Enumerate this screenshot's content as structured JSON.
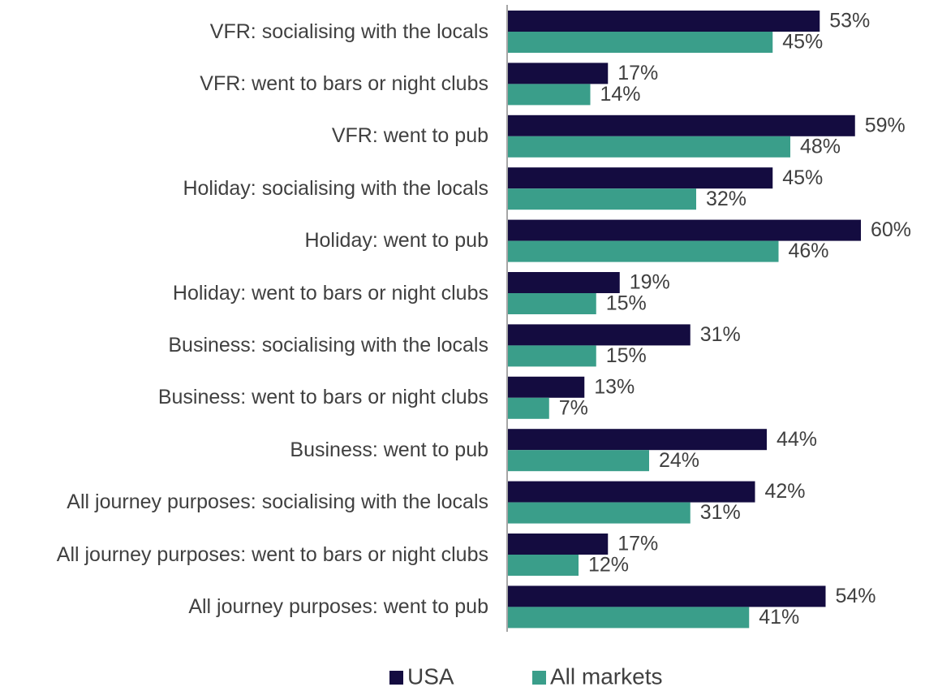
{
  "chart_data": {
    "type": "bar",
    "orientation": "horizontal",
    "categories": [
      "VFR: socialising with the locals",
      "VFR: went to bars or night clubs",
      "VFR: went to pub",
      "Holiday: socialising with the locals",
      "Holiday: went to pub",
      "Holiday: went to bars or night clubs",
      "Business: socialising with the locals",
      "Business: went to bars or night clubs",
      "Business: went to pub",
      "All journey purposes: socialising with the locals",
      "All journey purposes: went to bars or night clubs",
      "All journey purposes: went to pub"
    ],
    "series": [
      {
        "name": "USA",
        "color": "#140c40",
        "values": [
          53,
          17,
          59,
          45,
          60,
          19,
          31,
          13,
          44,
          42,
          17,
          54
        ],
        "value_labels": [
          "53%",
          "17%",
          "59%",
          "45%",
          "60%",
          "19%",
          "31%",
          "13%",
          "44%",
          "42%",
          "17%",
          "54%"
        ]
      },
      {
        "name": "All markets",
        "color": "#3a9e8a",
        "values": [
          45,
          14,
          48,
          32,
          46,
          15,
          15,
          7,
          24,
          31,
          12,
          41
        ],
        "value_labels": [
          "45%",
          "14%",
          "48%",
          "32%",
          "46%",
          "15%",
          "15%",
          "7%",
          "24%",
          "31%",
          "12%",
          "41%"
        ]
      }
    ],
    "legend": "bottom"
  }
}
